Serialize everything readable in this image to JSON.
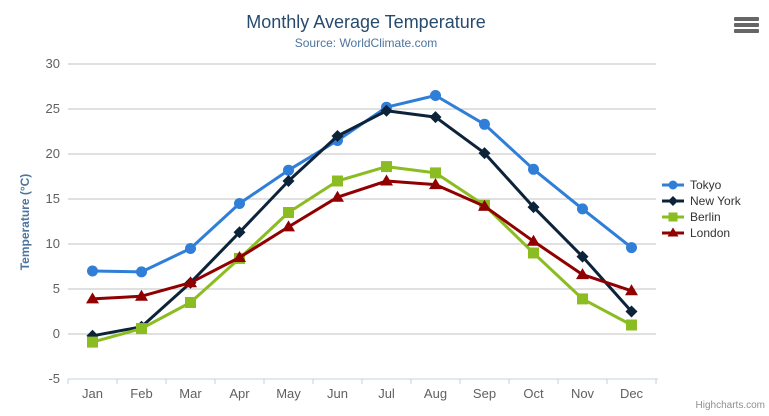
{
  "chart_data": {
    "type": "line",
    "title": "Monthly Average Temperature",
    "subtitle": "Source: WorldClimate.com",
    "xlabel": "",
    "ylabel": "Temperature (°C)",
    "categories": [
      "Jan",
      "Feb",
      "Mar",
      "Apr",
      "May",
      "Jun",
      "Jul",
      "Aug",
      "Sep",
      "Oct",
      "Nov",
      "Dec"
    ],
    "ylim": [
      -5,
      30
    ],
    "yticks": [
      -5,
      0,
      5,
      10,
      15,
      20,
      25,
      30
    ],
    "grid": true,
    "legend_position": "right",
    "series": [
      {
        "name": "Tokyo",
        "color": "#2f7ed8",
        "marker": "circle",
        "values": [
          7.0,
          6.9,
          9.5,
          14.5,
          18.2,
          21.5,
          25.2,
          26.5,
          23.3,
          18.3,
          13.9,
          9.6
        ]
      },
      {
        "name": "New York",
        "color": "#0d233a",
        "marker": "diamond",
        "values": [
          -0.2,
          0.8,
          5.7,
          11.3,
          17.0,
          22.0,
          24.8,
          24.1,
          20.1,
          14.1,
          8.6,
          2.5
        ]
      },
      {
        "name": "Berlin",
        "color": "#8bbc21",
        "marker": "square",
        "values": [
          -0.9,
          0.6,
          3.5,
          8.4,
          13.5,
          17.0,
          18.6,
          17.9,
          14.3,
          9.0,
          3.9,
          1.0
        ]
      },
      {
        "name": "London",
        "color": "#910000",
        "marker": "triangle",
        "values": [
          3.9,
          4.2,
          5.7,
          8.5,
          11.9,
          15.2,
          17.0,
          16.6,
          14.2,
          10.3,
          6.6,
          4.8
        ]
      }
    ],
    "colors": {
      "grid_line": "#C0C0C0",
      "axis_line": "#C0D0E0",
      "tick_label": "#606060",
      "title": "#274b6d",
      "subtitle": "#4d759e",
      "legend_text": "#333336",
      "credits": "#909090"
    },
    "credits": "Highcharts.com"
  }
}
